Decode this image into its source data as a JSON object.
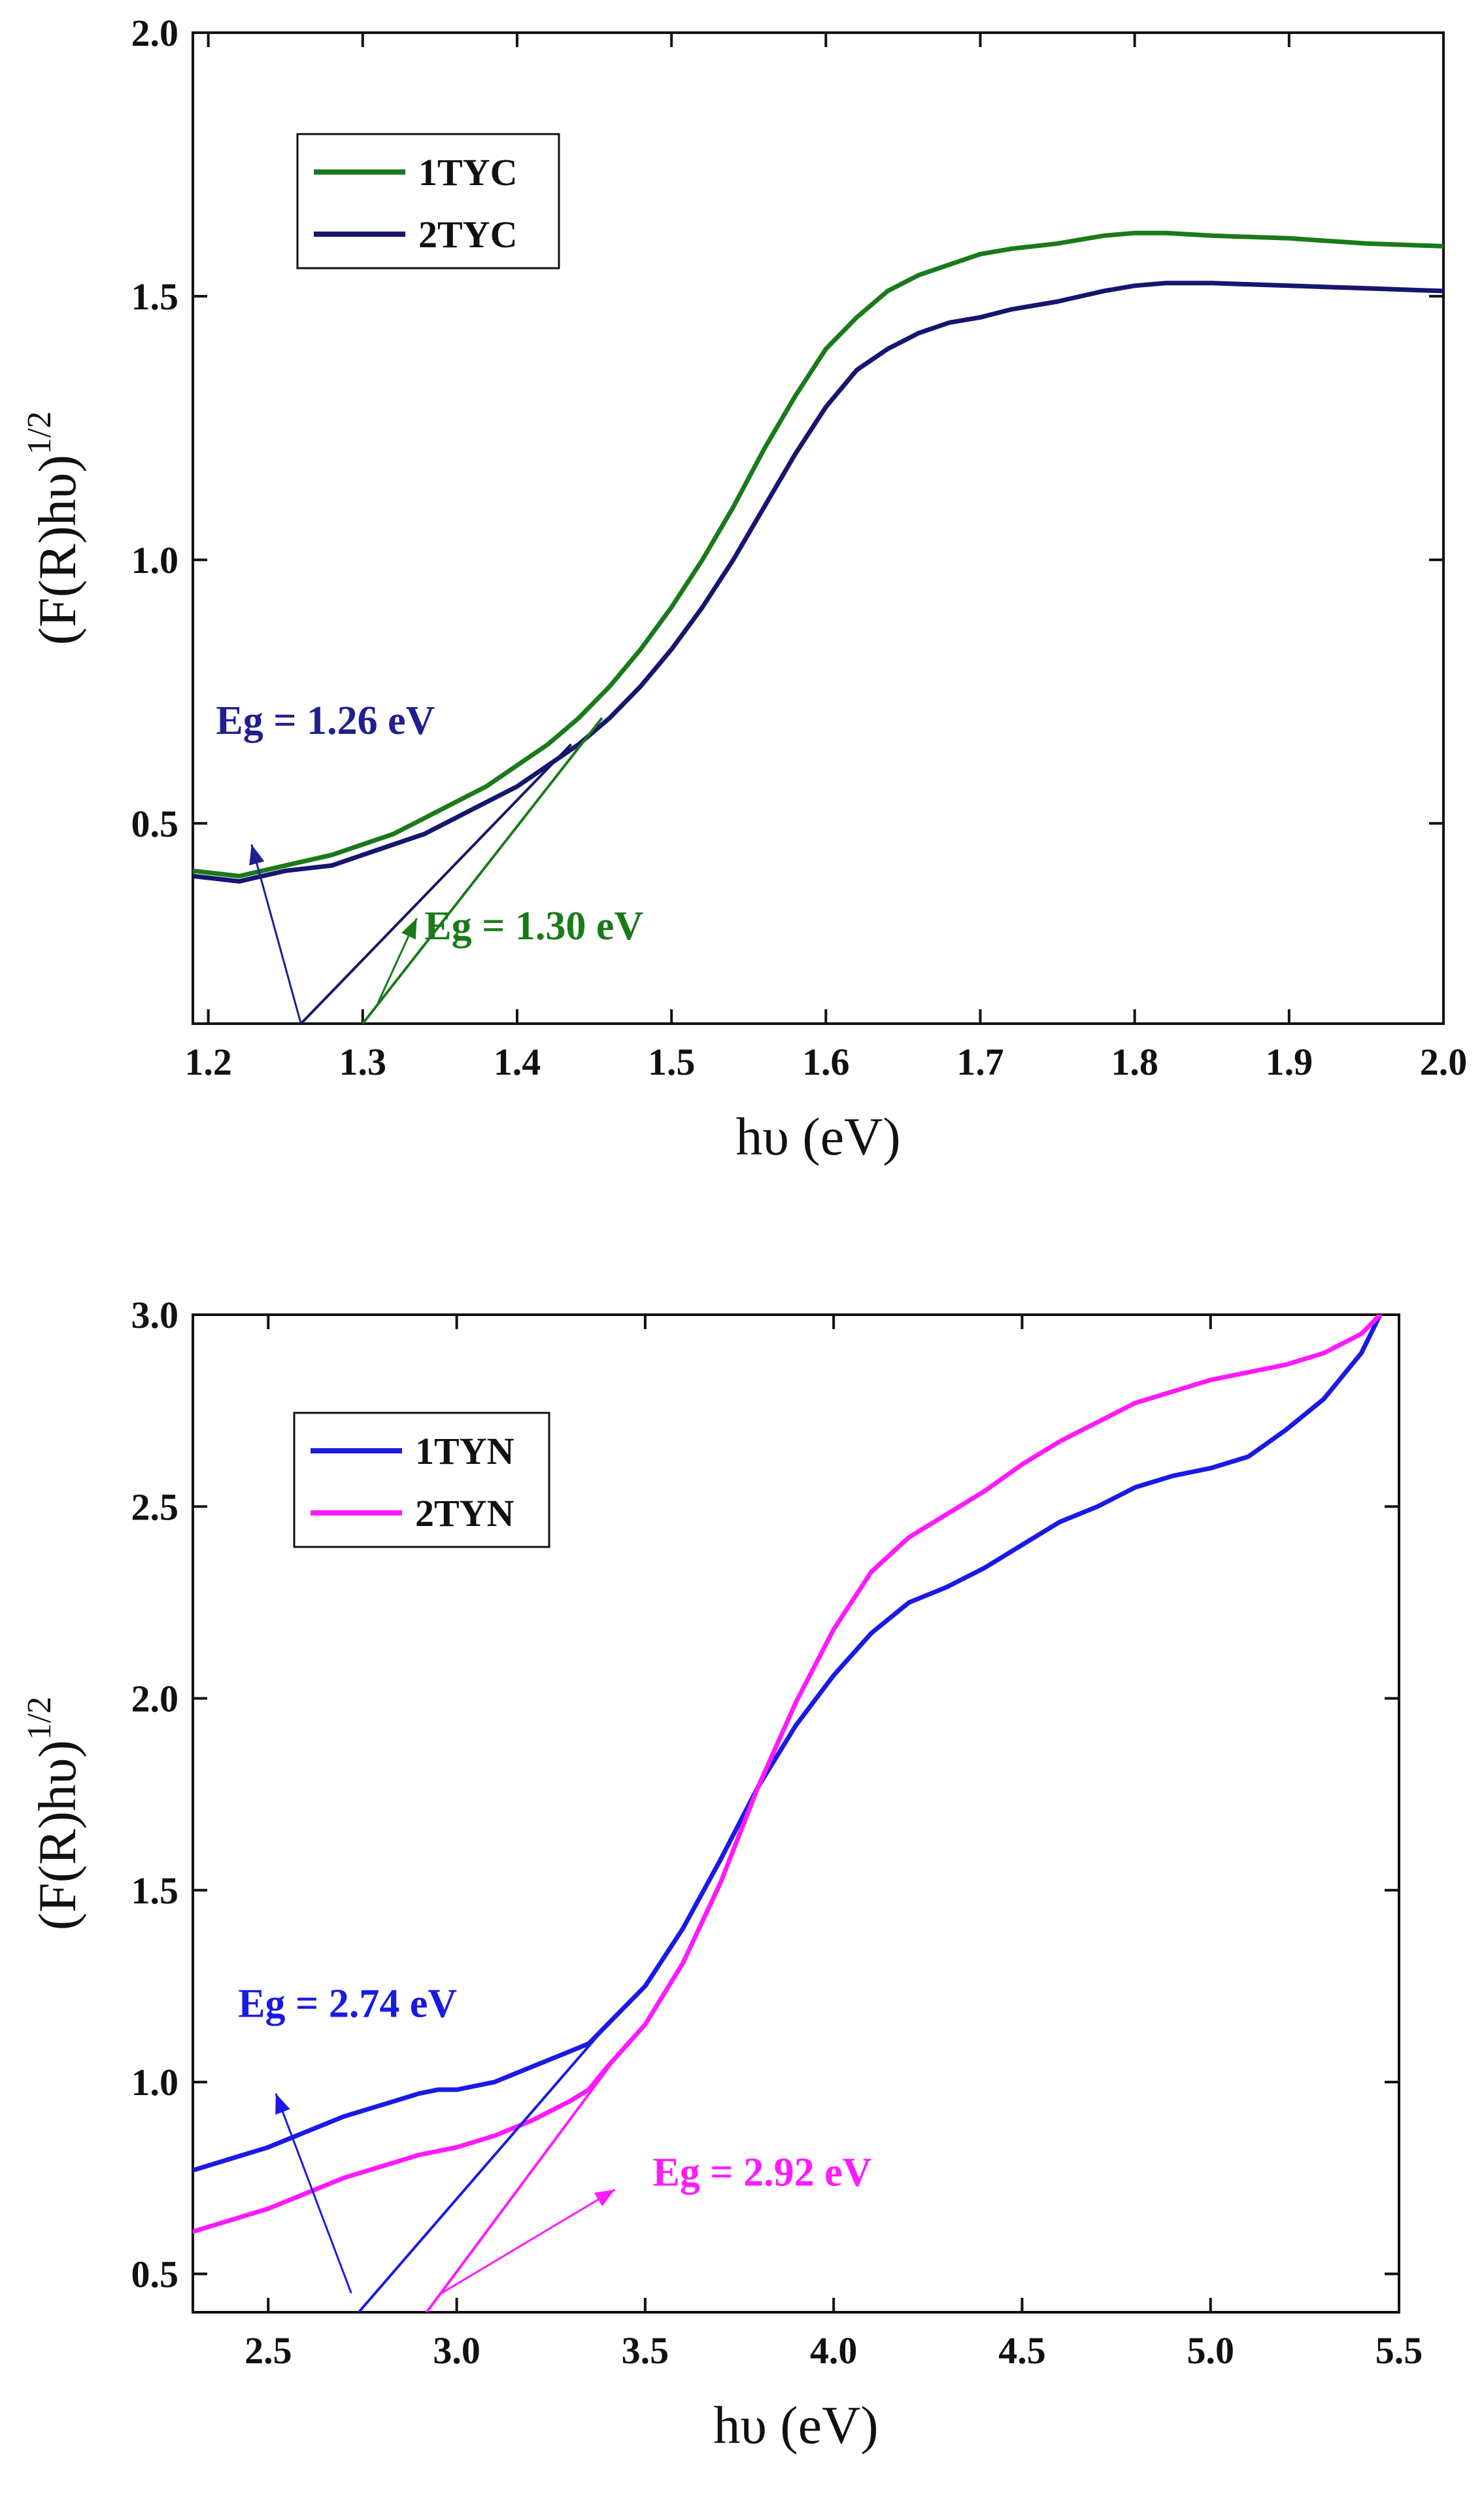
{
  "chart_data": [
    {
      "type": "line",
      "xlabel": "hυ (eV)",
      "ylabel_main": "(F(R)hυ)",
      "ylabel_exp": "1/2",
      "xlim": [
        1.19,
        2.0
      ],
      "ylim": [
        0.12,
        2.0
      ],
      "xticks": [
        1.2,
        1.3,
        1.4,
        1.5,
        1.6,
        1.7,
        1.8,
        1.9,
        2.0
      ],
      "xtick_labels": [
        "1.2",
        "1.3",
        "1.4",
        "1.5",
        "1.6",
        "1.7",
        "1.8",
        "1.9",
        "2.0"
      ],
      "yticks": [
        0.5,
        1.0,
        1.5,
        2.0
      ],
      "ytick_labels": [
        "0.5",
        "1.0",
        "1.5",
        "2.0"
      ],
      "legend": {
        "placement": "top-left",
        "entries": [
          "1TYC",
          "2TYC"
        ]
      },
      "series": [
        {
          "name": "1TYC",
          "color": "#1a7a1a",
          "x": [
            1.19,
            1.22,
            1.25,
            1.28,
            1.3,
            1.32,
            1.34,
            1.36,
            1.38,
            1.4,
            1.42,
            1.44,
            1.46,
            1.48,
            1.5,
            1.52,
            1.54,
            1.56,
            1.58,
            1.6,
            1.62,
            1.64,
            1.66,
            1.68,
            1.7,
            1.72,
            1.75,
            1.78,
            1.8,
            1.82,
            1.85,
            1.9,
            1.95,
            2.0
          ],
          "y": [
            0.41,
            0.4,
            0.42,
            0.44,
            0.46,
            0.48,
            0.51,
            0.54,
            0.57,
            0.61,
            0.65,
            0.7,
            0.76,
            0.83,
            0.91,
            1.0,
            1.1,
            1.21,
            1.31,
            1.4,
            1.46,
            1.51,
            1.54,
            1.56,
            1.58,
            1.59,
            1.6,
            1.615,
            1.62,
            1.62,
            1.615,
            1.61,
            1.6,
            1.595
          ]
        },
        {
          "name": "2TYC",
          "color": "#16166e",
          "x": [
            1.19,
            1.22,
            1.25,
            1.28,
            1.3,
            1.32,
            1.34,
            1.36,
            1.38,
            1.4,
            1.42,
            1.44,
            1.46,
            1.48,
            1.5,
            1.52,
            1.54,
            1.56,
            1.58,
            1.6,
            1.62,
            1.64,
            1.66,
            1.68,
            1.7,
            1.72,
            1.75,
            1.78,
            1.8,
            1.82,
            1.85,
            1.9,
            1.95,
            2.0
          ],
          "y": [
            0.4,
            0.39,
            0.41,
            0.42,
            0.44,
            0.46,
            0.48,
            0.51,
            0.54,
            0.57,
            0.61,
            0.65,
            0.7,
            0.76,
            0.83,
            0.91,
            1.0,
            1.1,
            1.2,
            1.29,
            1.36,
            1.4,
            1.43,
            1.45,
            1.46,
            1.475,
            1.49,
            1.51,
            1.52,
            1.525,
            1.525,
            1.52,
            1.515,
            1.51
          ]
        }
      ],
      "fit_lines": [
        {
          "color": "#16166e",
          "x": [
            1.26,
            1.435
          ],
          "y": [
            0.12,
            0.65
          ]
        },
        {
          "color": "#1a7a1a",
          "x": [
            1.3,
            1.455
          ],
          "y": [
            0.12,
            0.7
          ]
        }
      ],
      "annotations": [
        {
          "text": "Eg = 1.26 eV",
          "color": "#1f1f8f",
          "x": 1.205,
          "y": 0.67,
          "arrow": {
            "from": [
              1.26,
              0.12
            ],
            "to": [
              1.228,
              0.46
            ]
          }
        },
        {
          "text": "Eg = 1.30 eV",
          "color": "#1a7a1a",
          "x": 1.34,
          "y": 0.28,
          "arrow": {
            "from": [
              1.31,
              0.16
            ],
            "to": [
              1.335,
              0.32
            ]
          }
        }
      ]
    },
    {
      "type": "line",
      "xlabel": "hυ (eV)",
      "ylabel_main": "(F(R)hυ)",
      "ylabel_exp": "1/2",
      "xlim": [
        2.3,
        5.5
      ],
      "ylim": [
        0.4,
        3.0
      ],
      "xticks": [
        2.5,
        3.0,
        3.5,
        4.0,
        4.5,
        5.0,
        5.5
      ],
      "xtick_labels": [
        "2.5",
        "3.0",
        "3.5",
        "4.0",
        "4.5",
        "5.0",
        "5.5"
      ],
      "yticks": [
        0.5,
        1.0,
        1.5,
        2.0,
        2.5,
        3.0
      ],
      "ytick_labels": [
        "0.5",
        "1.0",
        "1.5",
        "2.0",
        "2.5",
        "3.0"
      ],
      "legend": {
        "placement": "top-left",
        "entries": [
          "1TYN",
          "2TYN"
        ]
      },
      "series": [
        {
          "name": "1TYN",
          "color": "#1a1ae6",
          "x": [
            2.3,
            2.4,
            2.5,
            2.6,
            2.7,
            2.8,
            2.9,
            2.95,
            3.0,
            3.1,
            3.2,
            3.3,
            3.35,
            3.4,
            3.5,
            3.6,
            3.7,
            3.8,
            3.9,
            4.0,
            4.1,
            4.2,
            4.3,
            4.4,
            4.5,
            4.6,
            4.7,
            4.8,
            4.9,
            5.0,
            5.1,
            5.2,
            5.3,
            5.4,
            5.45
          ],
          "y": [
            0.77,
            0.8,
            0.83,
            0.87,
            0.91,
            0.94,
            0.97,
            0.98,
            0.98,
            1.0,
            1.04,
            1.08,
            1.1,
            1.15,
            1.25,
            1.4,
            1.58,
            1.77,
            1.93,
            2.06,
            2.17,
            2.25,
            2.29,
            2.34,
            2.4,
            2.46,
            2.5,
            2.55,
            2.58,
            2.6,
            2.63,
            2.7,
            2.78,
            2.9,
            3.0
          ]
        },
        {
          "name": "2TYN",
          "color": "#ff1aff",
          "x": [
            2.3,
            2.4,
            2.5,
            2.6,
            2.7,
            2.8,
            2.9,
            2.95,
            3.0,
            3.1,
            3.2,
            3.3,
            3.35,
            3.4,
            3.5,
            3.6,
            3.7,
            3.8,
            3.9,
            4.0,
            4.1,
            4.2,
            4.3,
            4.4,
            4.5,
            4.6,
            4.7,
            4.8,
            4.9,
            5.0,
            5.1,
            5.2,
            5.3,
            5.4,
            5.45
          ],
          "y": [
            0.61,
            0.64,
            0.67,
            0.71,
            0.75,
            0.78,
            0.81,
            0.82,
            0.83,
            0.86,
            0.9,
            0.95,
            0.98,
            1.04,
            1.15,
            1.31,
            1.52,
            1.77,
            1.99,
            2.18,
            2.33,
            2.42,
            2.48,
            2.54,
            2.61,
            2.67,
            2.72,
            2.77,
            2.8,
            2.83,
            2.85,
            2.87,
            2.9,
            2.95,
            3.0
          ]
        }
      ],
      "fit_lines": [
        {
          "color": "#1a1ae6",
          "x": [
            2.74,
            3.4
          ],
          "y": [
            0.4,
            1.15
          ]
        },
        {
          "color": "#ff1aff",
          "x": [
            2.92,
            3.45
          ],
          "y": [
            0.4,
            1.1
          ]
        }
      ],
      "annotations": [
        {
          "text": "Eg = 2.74 eV",
          "color": "#1a1ae6",
          "x": 2.42,
          "y": 1.17,
          "arrow": {
            "from": [
              2.72,
              0.45
            ],
            "to": [
              2.52,
              0.97
            ]
          }
        },
        {
          "text": "Eg = 2.92 eV",
          "color": "#ff1aff",
          "x": 3.52,
          "y": 0.73,
          "arrow": {
            "from": [
              2.96,
              0.45
            ],
            "to": [
              3.42,
              0.72
            ]
          }
        }
      ]
    }
  ]
}
